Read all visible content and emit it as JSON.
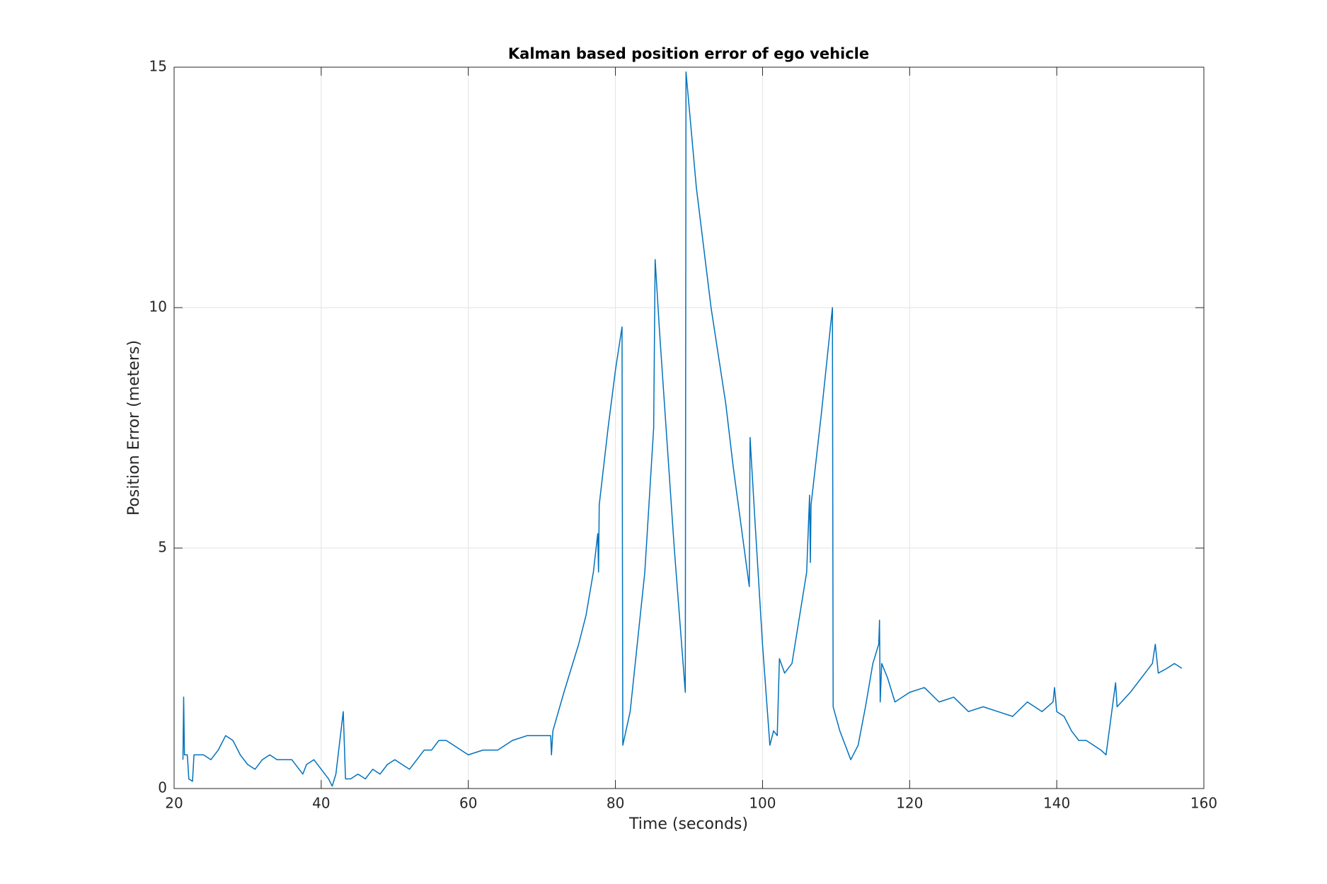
{
  "chart_data": {
    "type": "line",
    "title": "Kalman based position error of ego vehicle",
    "x_label": "Time (seconds)",
    "y_label": "Position Error (meters)",
    "x": [
      21.2,
      21.3,
      21.4,
      21.8,
      22,
      22.5,
      22.7,
      24,
      25,
      26,
      27,
      28,
      29,
      30,
      31,
      32,
      33,
      34,
      35,
      36,
      37,
      37.5,
      38,
      39,
      40,
      41,
      41.5,
      42,
      43,
      43.3,
      44,
      45,
      46,
      47,
      48,
      49,
      50,
      51,
      52,
      53,
      54,
      55,
      56,
      57,
      58,
      59,
      60,
      62,
      64,
      66,
      68,
      70,
      71.2,
      71.3,
      71.5,
      73,
      75,
      76,
      77,
      77.6,
      77.7,
      77.8,
      79,
      80,
      80.9,
      81,
      82,
      84,
      85.2,
      85.4,
      86,
      88,
      89.5,
      89.6,
      91,
      93,
      95,
      96,
      98.2,
      98.3,
      99,
      100,
      101,
      101.5,
      102,
      102.3,
      103,
      104,
      106,
      106.4,
      106.5,
      106.6,
      108,
      109.5,
      109.6,
      110.5,
      112,
      113,
      114,
      115,
      115.8,
      115.9,
      116,
      116.2,
      117,
      118,
      120,
      122,
      124,
      126,
      128,
      130,
      132,
      134,
      136,
      138,
      139.5,
      139.7,
      140,
      141,
      142,
      143,
      144,
      145,
      146,
      146.7,
      148,
      148.2,
      150,
      152,
      153,
      153.4,
      153.8,
      155,
      156,
      157
    ],
    "values": [
      0.6,
      1.9,
      0.7,
      0.7,
      0.2,
      0.15,
      0.7,
      0.7,
      0.6,
      0.8,
      1.1,
      1.0,
      0.7,
      0.5,
      0.4,
      0.6,
      0.7,
      0.6,
      0.6,
      0.6,
      0.4,
      0.3,
      0.5,
      0.6,
      0.4,
      0.2,
      0.05,
      0.3,
      1.6,
      0.2,
      0.2,
      0.3,
      0.2,
      0.4,
      0.3,
      0.5,
      0.6,
      0.5,
      0.4,
      0.6,
      0.8,
      0.8,
      1.0,
      1.0,
      0.9,
      0.8,
      0.7,
      0.8,
      0.8,
      1.0,
      1.1,
      1.1,
      1.1,
      0.7,
      1.2,
      2.0,
      3.0,
      3.6,
      4.5,
      5.3,
      4.5,
      5.9,
      7.5,
      8.7,
      9.6,
      0.9,
      1.6,
      4.5,
      7.5,
      11.0,
      9.5,
      5.0,
      2.0,
      14.9,
      12.5,
      10.0,
      8.0,
      6.7,
      4.2,
      7.3,
      5.5,
      3.0,
      0.9,
      1.2,
      1.1,
      2.7,
      2.4,
      2.6,
      4.5,
      6.1,
      4.7,
      5.9,
      7.8,
      10.0,
      1.7,
      1.2,
      0.6,
      0.9,
      1.7,
      2.6,
      3.0,
      3.5,
      1.8,
      2.6,
      2.3,
      1.8,
      2.0,
      2.1,
      1.8,
      1.9,
      1.6,
      1.7,
      1.6,
      1.5,
      1.8,
      1.6,
      1.8,
      2.1,
      1.6,
      1.5,
      1.2,
      1.0,
      1.0,
      0.9,
      0.8,
      0.7,
      2.2,
      1.7,
      2.0,
      2.4,
      2.6,
      3.0,
      2.4,
      2.5,
      2.6,
      2.5
    ],
    "color": "#0072bd",
    "xlim": [
      20,
      160
    ],
    "xticks": [
      20,
      40,
      60,
      80,
      100,
      120,
      140,
      160
    ],
    "ylim": [
      0,
      15
    ],
    "yticks": [
      0,
      5,
      10,
      15
    ],
    "grid": true
  }
}
